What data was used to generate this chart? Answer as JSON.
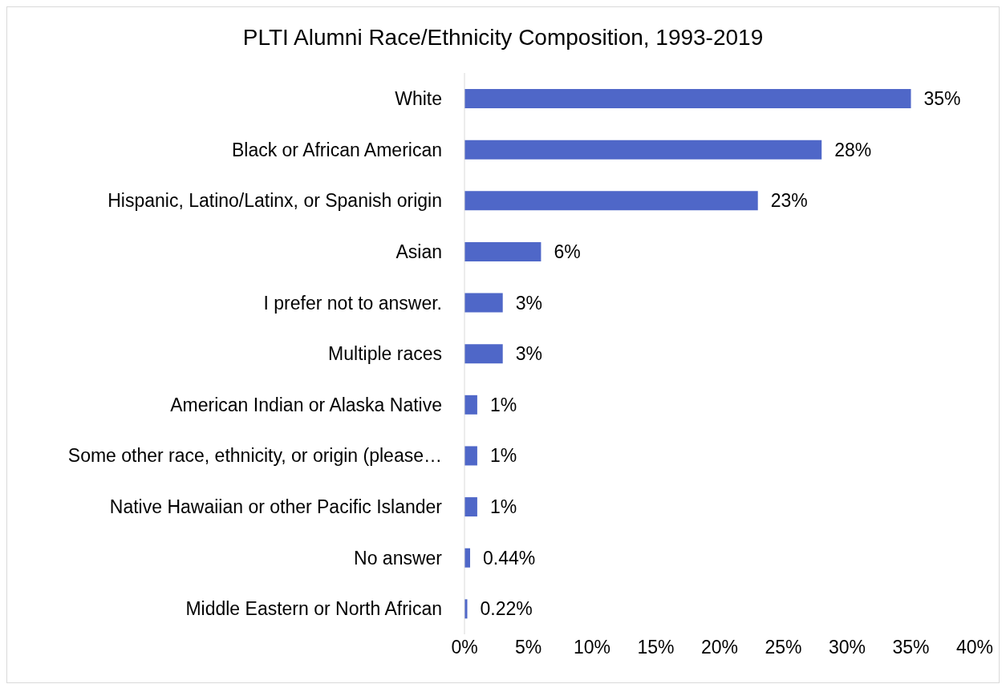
{
  "chart_data": {
    "type": "bar",
    "orientation": "horizontal",
    "title": "PLTI Alumni Race/Ethnicity Composition, 1993-2019",
    "categories": [
      "White",
      "Black or African American",
      "Hispanic, Latino/Latinx, or Spanish origin",
      "Asian",
      "I prefer not to answer.",
      "Multiple races",
      "American Indian or Alaska Native",
      "Some other race, ethnicity, or origin (please…",
      "Native Hawaiian or other Pacific Islander",
      "No answer",
      "Middle Eastern or North African"
    ],
    "values": [
      35,
      28,
      23,
      6,
      3,
      3,
      1,
      1,
      1,
      0.44,
      0.22
    ],
    "value_labels": [
      "35%",
      "28%",
      "23%",
      "6%",
      "3%",
      "3%",
      "1%",
      "1%",
      "1%",
      "0.44%",
      "0.22%"
    ],
    "color": "#4f67c8",
    "xlim": [
      0,
      40
    ],
    "xticks": [
      {
        "value": 0,
        "label": "0%"
      },
      {
        "value": 5,
        "label": "5%"
      },
      {
        "value": 10,
        "label": "10%"
      },
      {
        "value": 15,
        "label": "15%"
      },
      {
        "value": 20,
        "label": "20%"
      },
      {
        "value": 25,
        "label": "25%"
      },
      {
        "value": 30,
        "label": "30%"
      },
      {
        "value": 35,
        "label": "35%"
      },
      {
        "value": 40,
        "label": "40%"
      }
    ],
    "grid": false
  }
}
